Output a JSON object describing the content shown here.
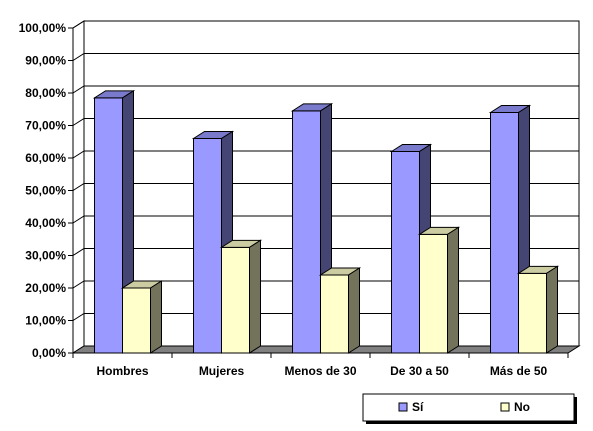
{
  "chart_data": {
    "type": "bar",
    "title": "",
    "xlabel": "",
    "ylabel": "",
    "categories": [
      "Hombres",
      "Mujeres",
      "Menos de 30",
      "De 30 a 50",
      "Más de 50"
    ],
    "series": [
      {
        "name": "Sí",
        "color": "#9999ff",
        "values": [
          78.5,
          66.0,
          74.5,
          62.0,
          74.0
        ]
      },
      {
        "name": "No",
        "color": "#ffffcc",
        "values": [
          20.0,
          32.5,
          24.0,
          36.5,
          24.5
        ]
      }
    ],
    "ylim": [
      0,
      100
    ],
    "yticks": [
      "0,00%",
      "10,00%",
      "20,00%",
      "30,00%",
      "40,00%",
      "50,00%",
      "60,00%",
      "70,00%",
      "80,00%",
      "90,00%",
      "100,00%"
    ],
    "grid": true,
    "legend": "bottom-right",
    "style": "3d-bar"
  }
}
